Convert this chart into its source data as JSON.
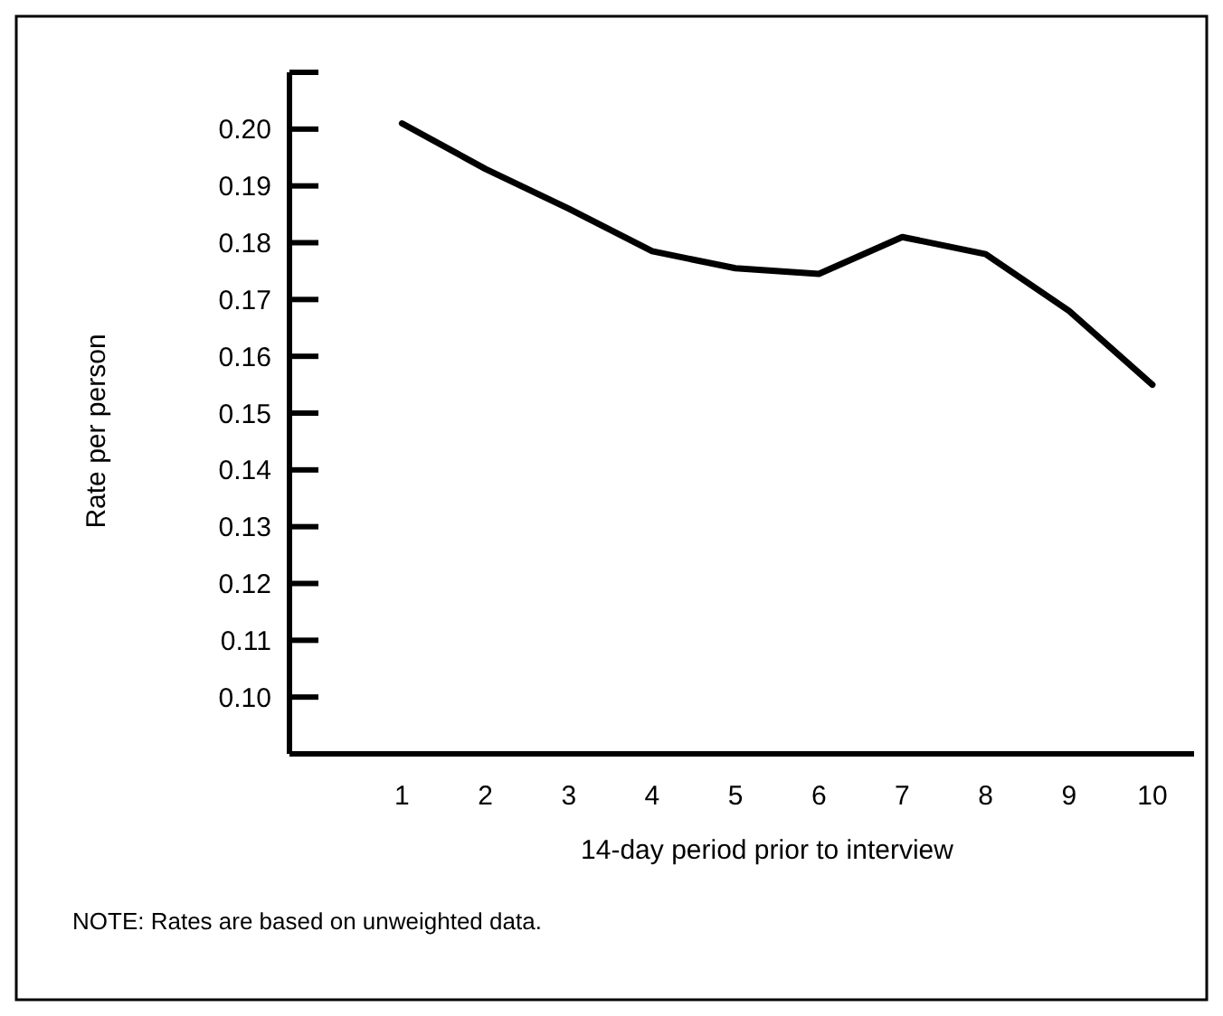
{
  "chart_data": {
    "type": "line",
    "xlabel": "14-day period prior to interview",
    "ylabel": "Rate per person",
    "x": [
      1,
      2,
      3,
      4,
      5,
      6,
      7,
      8,
      9,
      10
    ],
    "series": [
      {
        "color": "#000000",
        "values": [
          0.201,
          0.193,
          0.186,
          0.1785,
          0.1755,
          0.1745,
          0.181,
          0.178,
          0.168,
          0.155
        ]
      }
    ],
    "xlim": [
      -0.35,
      10.5
    ],
    "xticks": [
      1,
      2,
      3,
      4,
      5,
      6,
      7,
      8,
      9,
      10
    ],
    "ylim": [
      0.09,
      0.21
    ],
    "yticks": [
      {
        "value": 0.1,
        "label": "0.10"
      },
      0.11,
      0.12,
      0.13,
      0.14,
      0.15,
      0.16,
      0.17,
      0.18,
      0.19,
      {
        "value": 0.2,
        "label": "0.20"
      },
      {
        "value": 0.21,
        "label": null
      }
    ],
    "annotations": [
      "NOTE: Rates are based on unweighted data."
    ],
    "grid": false,
    "marker": "none",
    "line_style": "solid"
  }
}
